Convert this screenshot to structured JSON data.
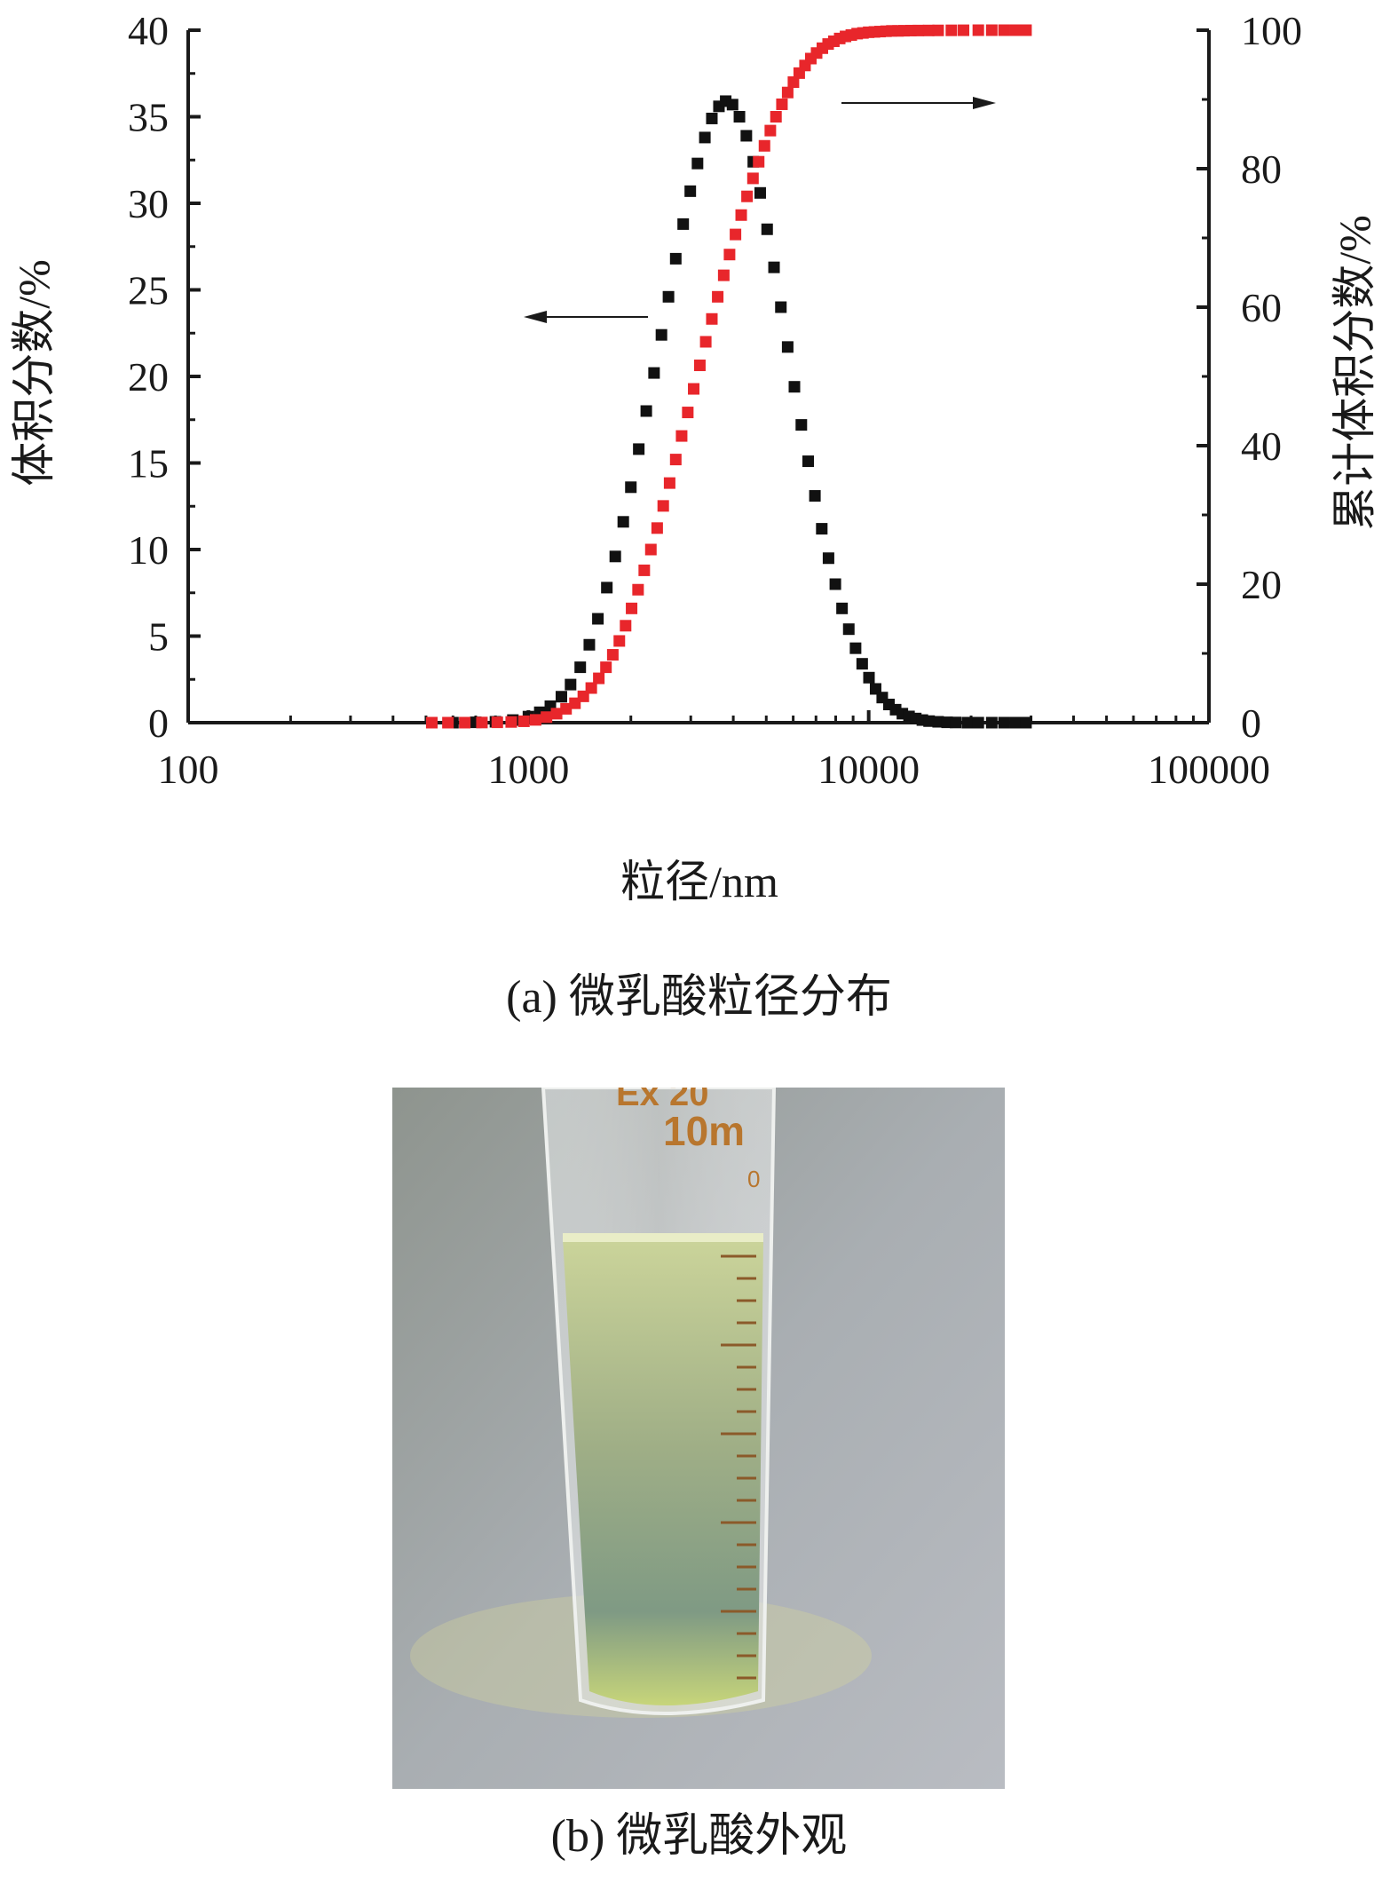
{
  "chart_data": {
    "type": "scatter",
    "xlabel": "粒径/nm",
    "ylabel_left": "体积分数/%",
    "ylabel_right": "累计体积分数/%",
    "x_scale": "log",
    "xlim": [
      100,
      100000
    ],
    "ylim_left": [
      0,
      40
    ],
    "ylim_right": [
      0,
      100
    ],
    "x_ticks": [
      "100",
      "1000",
      "10000",
      "100000"
    ],
    "y_ticks_left": [
      "0",
      "5",
      "10",
      "15",
      "20",
      "25",
      "30",
      "35",
      "40"
    ],
    "y_ticks_right": [
      "0",
      "20",
      "40",
      "60",
      "80",
      "100"
    ],
    "grid": false,
    "series": [
      {
        "axis": "left",
        "color": "#111111",
        "marker": "square",
        "x": [
          520,
          600,
          700,
          800,
          900,
          1000,
          1080,
          1160,
          1250,
          1330,
          1420,
          1510,
          1600,
          1700,
          1800,
          1900,
          2000,
          2110,
          2220,
          2340,
          2460,
          2580,
          2710,
          2850,
          2990,
          3140,
          3300,
          3460,
          3630,
          3800,
          3980,
          4170,
          4370,
          4580,
          4800,
          5030,
          5270,
          5520,
          5780,
          6050,
          6340,
          6640,
          6950,
          7280,
          7620,
          7980,
          8350,
          8740,
          9150,
          9570,
          10020,
          10480,
          10960,
          11470,
          12000,
          12560,
          13140,
          13750,
          14380,
          15050,
          16000,
          17000,
          18000,
          19500,
          21000,
          23000,
          25000,
          27000,
          29000
        ],
        "y": [
          0,
          0,
          0.02,
          0.05,
          0.15,
          0.35,
          0.6,
          0.95,
          1.5,
          2.2,
          3.2,
          4.5,
          6.0,
          7.8,
          9.6,
          11.6,
          13.6,
          15.8,
          18.0,
          20.2,
          22.4,
          24.6,
          26.8,
          28.8,
          30.7,
          32.3,
          33.8,
          34.9,
          35.6,
          35.9,
          35.7,
          35.0,
          33.9,
          32.4,
          30.6,
          28.5,
          26.3,
          24.0,
          21.7,
          19.4,
          17.2,
          15.1,
          13.1,
          11.2,
          9.5,
          8.0,
          6.6,
          5.4,
          4.3,
          3.4,
          2.6,
          1.95,
          1.45,
          1.05,
          0.75,
          0.52,
          0.36,
          0.24,
          0.15,
          0.09,
          0.05,
          0.02,
          0.01,
          0,
          0,
          0,
          0,
          0,
          0
        ]
      },
      {
        "axis": "right",
        "color": "#e8262b",
        "marker": "square",
        "x": [
          520,
          580,
          650,
          730,
          810,
          890,
          970,
          1050,
          1130,
          1210,
          1290,
          1370,
          1450,
          1530,
          1610,
          1690,
          1770,
          1850,
          1930,
          2010,
          2100,
          2190,
          2290,
          2390,
          2490,
          2600,
          2710,
          2820,
          2940,
          3060,
          3190,
          3320,
          3460,
          3600,
          3750,
          3900,
          4060,
          4220,
          4390,
          4570,
          4750,
          4940,
          5140,
          5340,
          5560,
          5780,
          6010,
          6250,
          6500,
          6760,
          7030,
          7310,
          7600,
          7900,
          8220,
          8550,
          8890,
          9250,
          9620,
          10000,
          10400,
          10800,
          11250,
          11700,
          12200,
          12700,
          13300,
          14000,
          15000,
          16000,
          17500,
          19000,
          21000,
          23000,
          25000,
          27000,
          29000
        ],
        "y": [
          0,
          0,
          0,
          0.02,
          0.05,
          0.1,
          0.2,
          0.4,
          0.8,
          1.3,
          2.0,
          2.8,
          3.8,
          5.0,
          6.4,
          8.0,
          9.8,
          11.8,
          14.0,
          16.5,
          19.2,
          22.0,
          25.0,
          28.1,
          31.3,
          34.6,
          38.0,
          41.4,
          44.8,
          48.2,
          51.6,
          55.0,
          58.3,
          61.5,
          64.6,
          67.6,
          70.5,
          73.3,
          76.0,
          78.6,
          81.0,
          83.3,
          85.5,
          87.5,
          89.3,
          91.0,
          92.5,
          93.8,
          94.9,
          95.9,
          96.7,
          97.4,
          98.0,
          98.4,
          98.8,
          99.1,
          99.3,
          99.5,
          99.6,
          99.7,
          99.75,
          99.8,
          99.85,
          99.9,
          99.9,
          99.92,
          99.94,
          99.95,
          99.96,
          99.97,
          99.98,
          99.99,
          100,
          100,
          100,
          100,
          100
        ]
      }
    ],
    "annotations": [
      {
        "type": "arrow",
        "direction": "left",
        "points_to_axis": "left"
      },
      {
        "type": "arrow",
        "direction": "right",
        "points_to_axis": "right"
      }
    ]
  },
  "captions": {
    "a": "(a) 微乳酸粒径分布",
    "b": "(b) 微乳酸外观"
  },
  "photo": {
    "tube_text_1": "Ex 20",
    "tube_text_2": "10m",
    "tube_text_3": "0"
  }
}
